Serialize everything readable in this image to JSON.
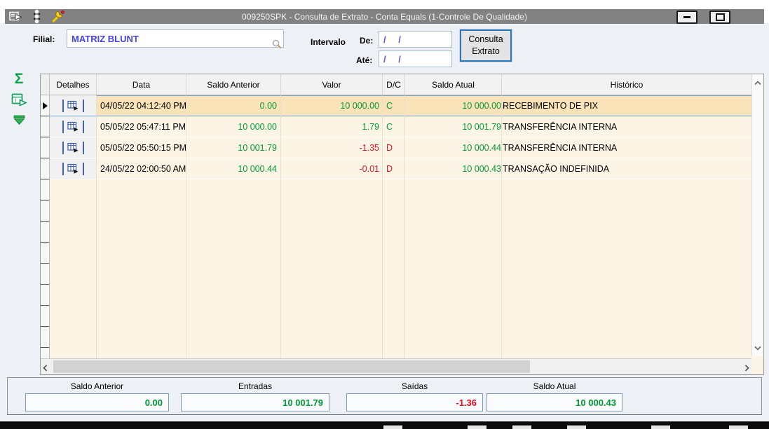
{
  "window": {
    "title": "009250SPK - Consulta de Extrato - Conta Equals (1-Controle De Qualidade)",
    "titlebar_icons": [
      "exit-form-icon",
      "status-dots-icon",
      "wrench-icon"
    ],
    "controls": [
      "minimize",
      "maximize"
    ]
  },
  "form": {
    "filial_label": "Filial:",
    "filial_value": "MATRIZ BLUNT",
    "intervalo_label": "Intervalo",
    "de_label": "De:",
    "de_value": "/ /",
    "ate_label": "Até:",
    "ate_value": "/ /",
    "consulta_button_line1": "Consulta",
    "consulta_button_line2": "Extrato"
  },
  "toolbar": {
    "sigma_glyph": "Σ",
    "icons": [
      "sum-sigma-icon",
      "detail-form-icon",
      "go-bottom-icon"
    ]
  },
  "table": {
    "headers": [
      "Detalhes",
      "Data",
      "Saldo Anterior",
      "Valor",
      "D/C",
      "Saldo Atual",
      "Histórico"
    ],
    "rows": [
      {
        "data": "04/05/22 04:12:40 PM",
        "saldo_anterior": "0.00",
        "valor": "10 000.00",
        "dc": "C",
        "saldo_atual": "10 000.00",
        "historico": "RECEBIMENTO DE PIX",
        "selected": true
      },
      {
        "data": "05/05/22 05:47:11 PM",
        "saldo_anterior": "10 000.00",
        "valor": "1.79",
        "dc": "C",
        "saldo_atual": "10 001.79",
        "historico": "TRANSFERÊNCIA INTERNA",
        "selected": false
      },
      {
        "data": "05/05/22 05:50:15 PM",
        "saldo_anterior": "10 001.79",
        "valor": "-1.35",
        "dc": "D",
        "saldo_atual": "10 000.44",
        "historico": "TRANSFERÊNCIA INTERNA",
        "selected": false
      },
      {
        "data": "24/05/22 02:00:50 AM",
        "saldo_anterior": "10 000.44",
        "valor": "-0.01",
        "dc": "D",
        "saldo_atual": "10 000.43",
        "historico": "TRANSAÇÃO INDEFINIDA",
        "selected": false
      }
    ]
  },
  "summary": {
    "items": [
      {
        "label": "Saldo Anterior",
        "value": "0.00",
        "tone": "positive"
      },
      {
        "label": "Entradas",
        "value": "10 001.79",
        "tone": "positive"
      },
      {
        "label": "Saídas",
        "value": "-1.36",
        "tone": "negative"
      },
      {
        "label": "Saldo Atual",
        "value": "10 000.43",
        "tone": "positive"
      }
    ]
  },
  "colors": {
    "positive": "#009933",
    "negative": "#E81123",
    "selected_row_bg": "#FAE3B9",
    "accent_blue": "#2779BD",
    "titlebar_gray": "#828282",
    "grid_cream": "#FCF5E6"
  }
}
